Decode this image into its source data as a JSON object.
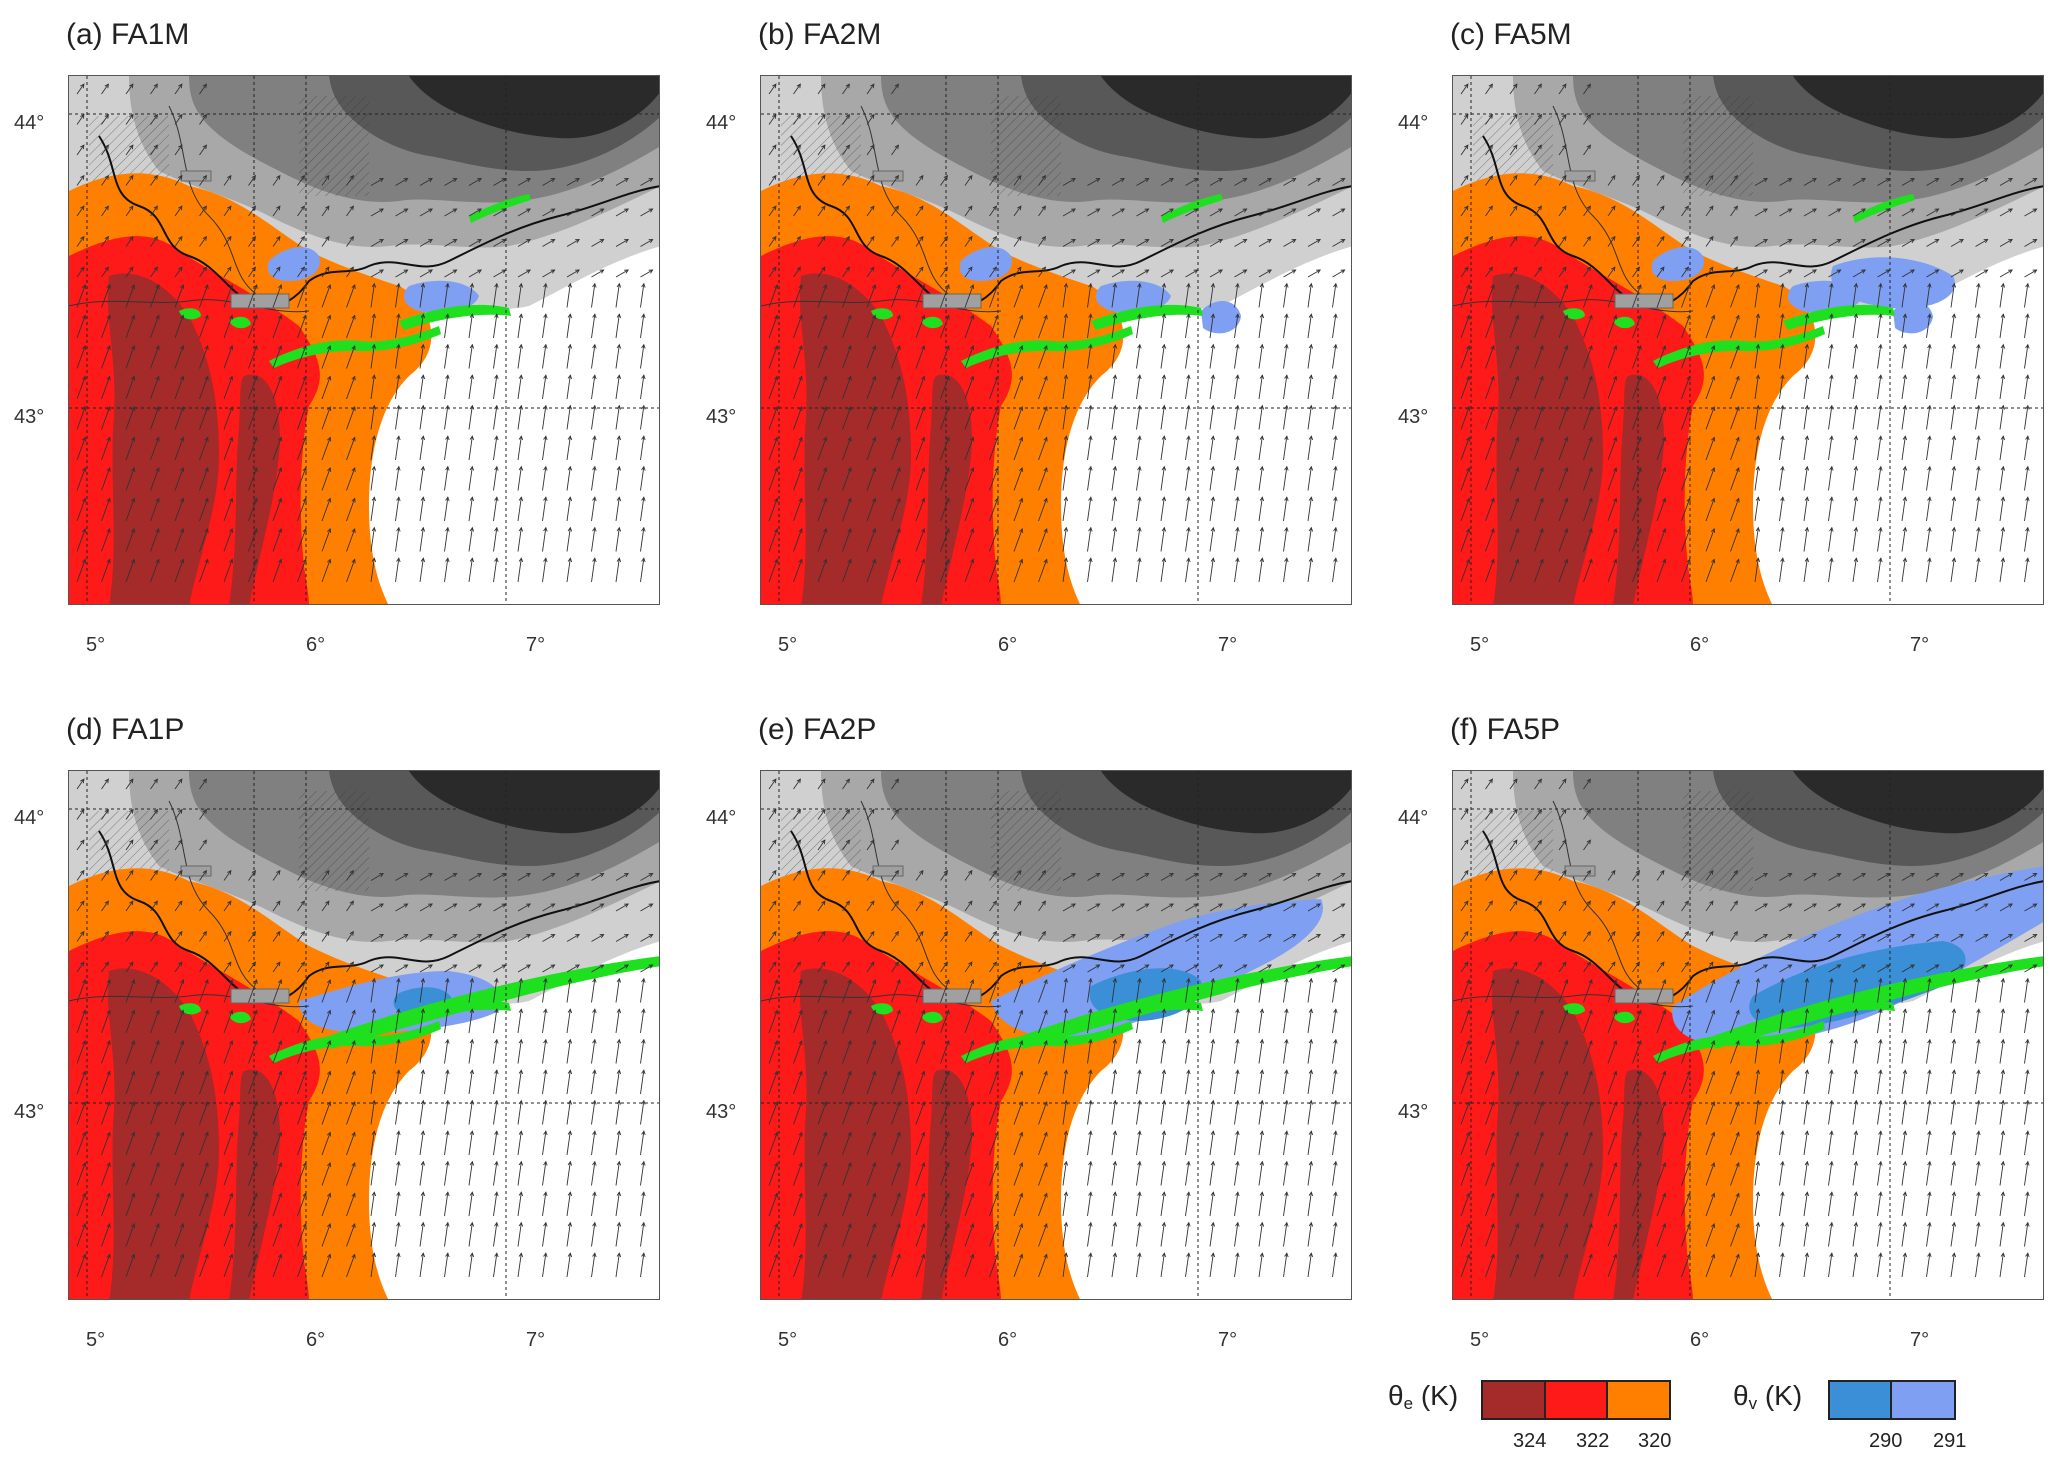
{
  "panels": [
    {
      "label": "(a) FA1M",
      "variant": "M",
      "weight": 1
    },
    {
      "label": "(b) FA2M",
      "variant": "M",
      "weight": 2
    },
    {
      "label": "(c) FA5M",
      "variant": "M",
      "weight": 3
    },
    {
      "label": "(d) FA1P",
      "variant": "P",
      "weight": 1
    },
    {
      "label": "(e) FA2P",
      "variant": "P",
      "weight": 2
    },
    {
      "label": "(f) FA5P",
      "variant": "P",
      "weight": 3
    }
  ],
  "axes": {
    "lat_labels": [
      "44°",
      "43°"
    ],
    "lon_labels": [
      "5°",
      "6°",
      "7°"
    ]
  },
  "legend": {
    "theta_e": {
      "symbol": "θ",
      "subscript": "e",
      "unit": " (K)",
      "colors": [
        "#a52a2a",
        "#ff1a1a",
        "#ff8000"
      ],
      "ticks": [
        "324",
        "322",
        "320"
      ]
    },
    "theta_v": {
      "symbol": "θ",
      "subscript": "v",
      "unit": " (K)",
      "colors": [
        "#3a8fd6",
        "#7f9ff2"
      ],
      "ticks": [
        "290",
        "291"
      ]
    }
  },
  "colors": {
    "dark_red": "#a52a2a",
    "red": "#ff1a1a",
    "orange": "#ff8000",
    "green": "#1ee01e",
    "blue_light": "#7f9ff2",
    "blue_dark": "#3a8fd6",
    "terrain_1": "#d0d0d0",
    "terrain_2": "#a8a8a8",
    "terrain_3": "#808080",
    "terrain_4": "#585858",
    "terrain_5": "#2a2a2a",
    "city": "#a0a0a0"
  }
}
